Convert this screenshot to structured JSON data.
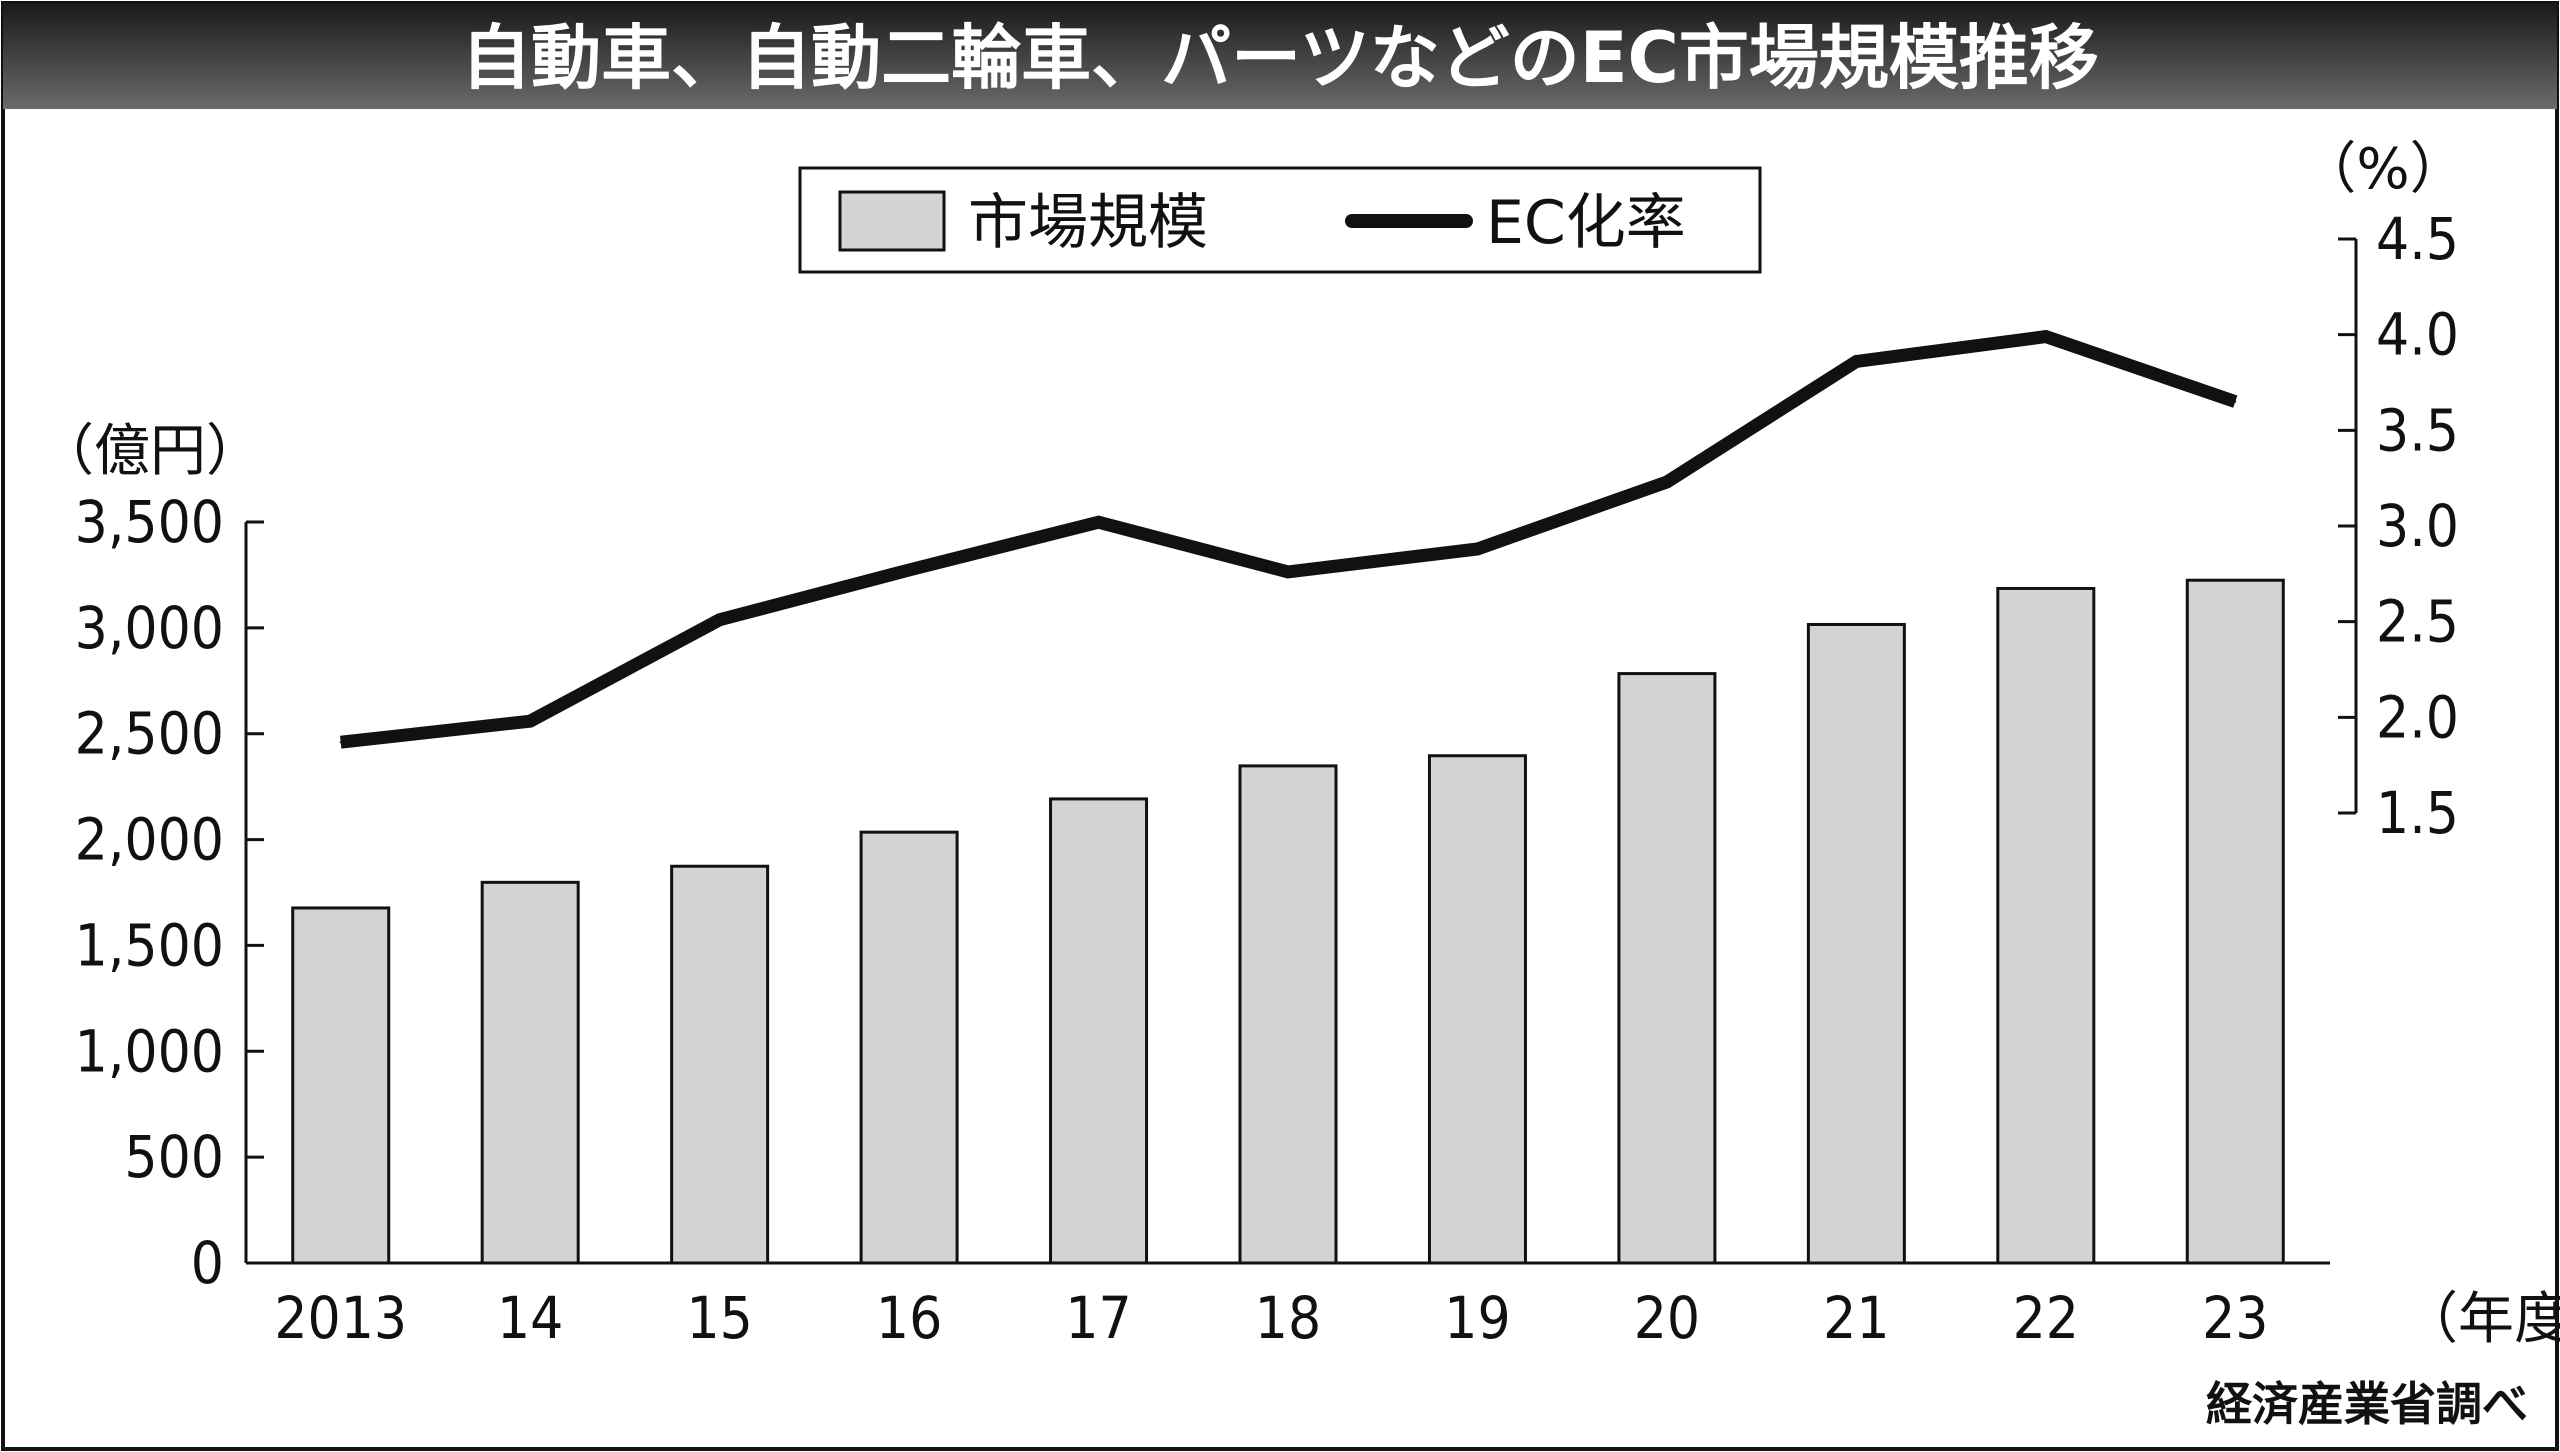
{
  "chart_data": {
    "type": "bar",
    "title": "自動車、自動二輪車、パーツなどのEC市場規模推移",
    "categories": [
      "2013",
      "14",
      "15",
      "16",
      "17",
      "18",
      "19",
      "20",
      "21",
      "22",
      "23"
    ],
    "x_unit": "（年度）",
    "series": [
      {
        "name": "市場規模",
        "type": "bar",
        "axis": "left",
        "color": "#d3d3d3",
        "values": [
          1677,
          1798,
          1874,
          2035,
          2192,
          2348,
          2396,
          2784,
          3016,
          3186,
          3225
        ]
      },
      {
        "name": "EC化率",
        "type": "line",
        "axis": "right",
        "color": "#111111",
        "values": [
          1.87,
          1.98,
          2.51,
          2.77,
          3.02,
          2.76,
          2.88,
          3.23,
          3.86,
          3.99,
          3.65
        ]
      }
    ],
    "y_left": {
      "label": "（億円）",
      "range": [
        0,
        3500
      ],
      "ticks": [
        0,
        500,
        1000,
        1500,
        2000,
        2500,
        3000,
        3500
      ],
      "tick_labels": [
        "0",
        "500",
        "1,000",
        "1,500",
        "2,000",
        "2,500",
        "3,000",
        "3,500"
      ]
    },
    "y_right": {
      "label": "（%）",
      "range": [
        1.5,
        4.5
      ],
      "ticks": [
        1.5,
        2.0,
        2.5,
        3.0,
        3.5,
        4.0,
        4.5
      ],
      "tick_labels": [
        "1.5",
        "2.0",
        "2.5",
        "3.0",
        "3.5",
        "4.0",
        "4.5"
      ]
    },
    "legend": {
      "position": "top-center",
      "items": [
        "市場規模",
        "EC化率"
      ]
    },
    "grid": false,
    "source": "経済産業省調べ"
  },
  "colors": {
    "title_band_top": "#1a1a1a",
    "title_band_bottom": "#6a6a6a",
    "bar_fill": "#d3d3d3",
    "line": "#111111",
    "axis": "#111111"
  }
}
